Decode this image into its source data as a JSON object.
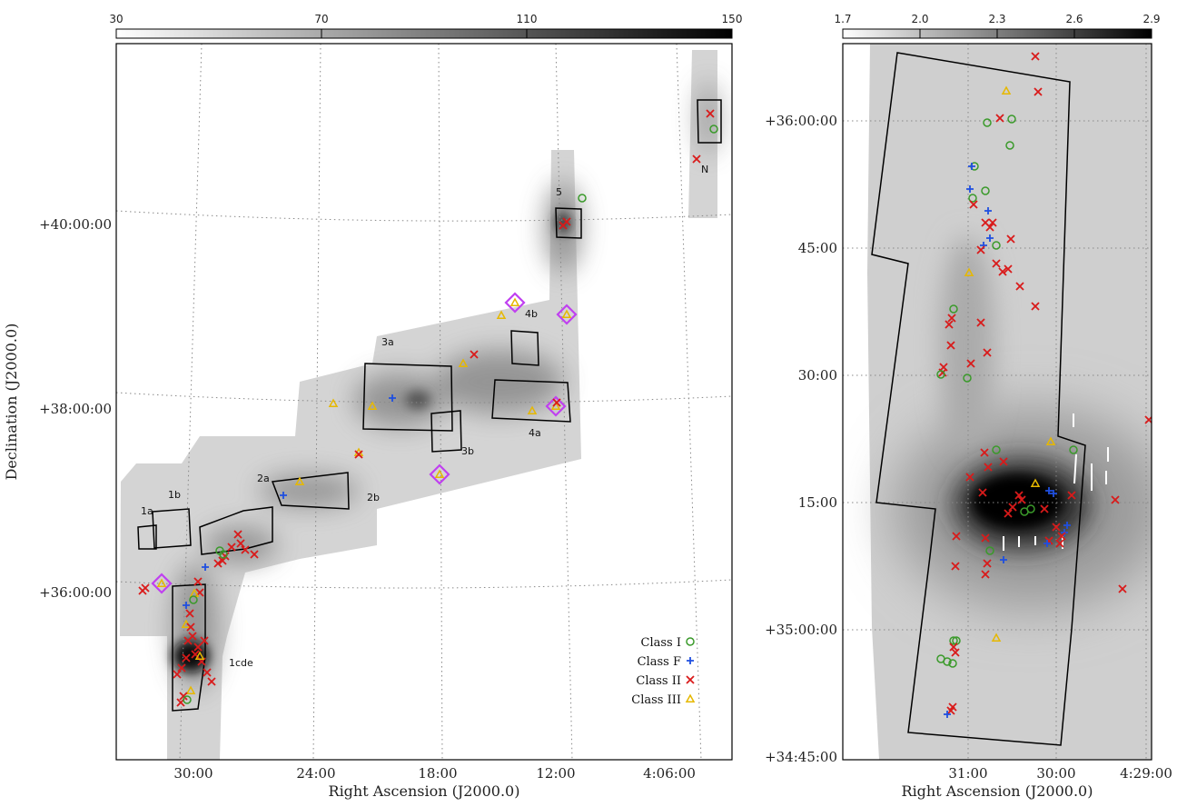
{
  "chart_data": [
    {
      "type": "scatter",
      "panel": "left",
      "xlabel": "Right Ascension (J2000.0)",
      "ylabel": "Declination (J2000.0)",
      "x_ticks": [
        "30:00",
        "24:00",
        "18:00",
        "12:00",
        "4:06:00"
      ],
      "y_ticks": [
        "+36:00:00",
        "+38:00:00",
        "+40:00:00"
      ],
      "colorbar": {
        "ticks": [
          "30",
          "70",
          "110",
          "150"
        ],
        "range": [
          30,
          150
        ]
      },
      "regions": [
        "1a",
        "1b",
        "1cde",
        "2a",
        "2b",
        "3a",
        "3b",
        "4a",
        "4b",
        "5",
        "N"
      ],
      "legend": {
        "position": "lower-right",
        "entries": [
          "Class I",
          "Class F",
          "Class II",
          "Class III"
        ]
      },
      "grid": true
    },
    {
      "type": "scatter",
      "panel": "right",
      "xlabel": "Right Ascension (J2000.0)",
      "x_ticks": [
        "31:00",
        "30:00",
        "4:29:00"
      ],
      "y_ticks": [
        "+34:45:00",
        "+35:00:00",
        "15:00",
        "30:00",
        "45:00",
        "+36:00:00"
      ],
      "colorbar": {
        "ticks": [
          "1.7",
          "2.0",
          "2.3",
          "2.6",
          "2.9"
        ],
        "range": [
          1.7,
          2.9
        ]
      },
      "grid": true
    }
  ],
  "colors": {
    "class_i": "#3a9a2a",
    "class_f": "#1f4fe0",
    "class_ii": "#d91a1a",
    "class_iii": "#e6b800",
    "diamond": "#c040f0"
  }
}
